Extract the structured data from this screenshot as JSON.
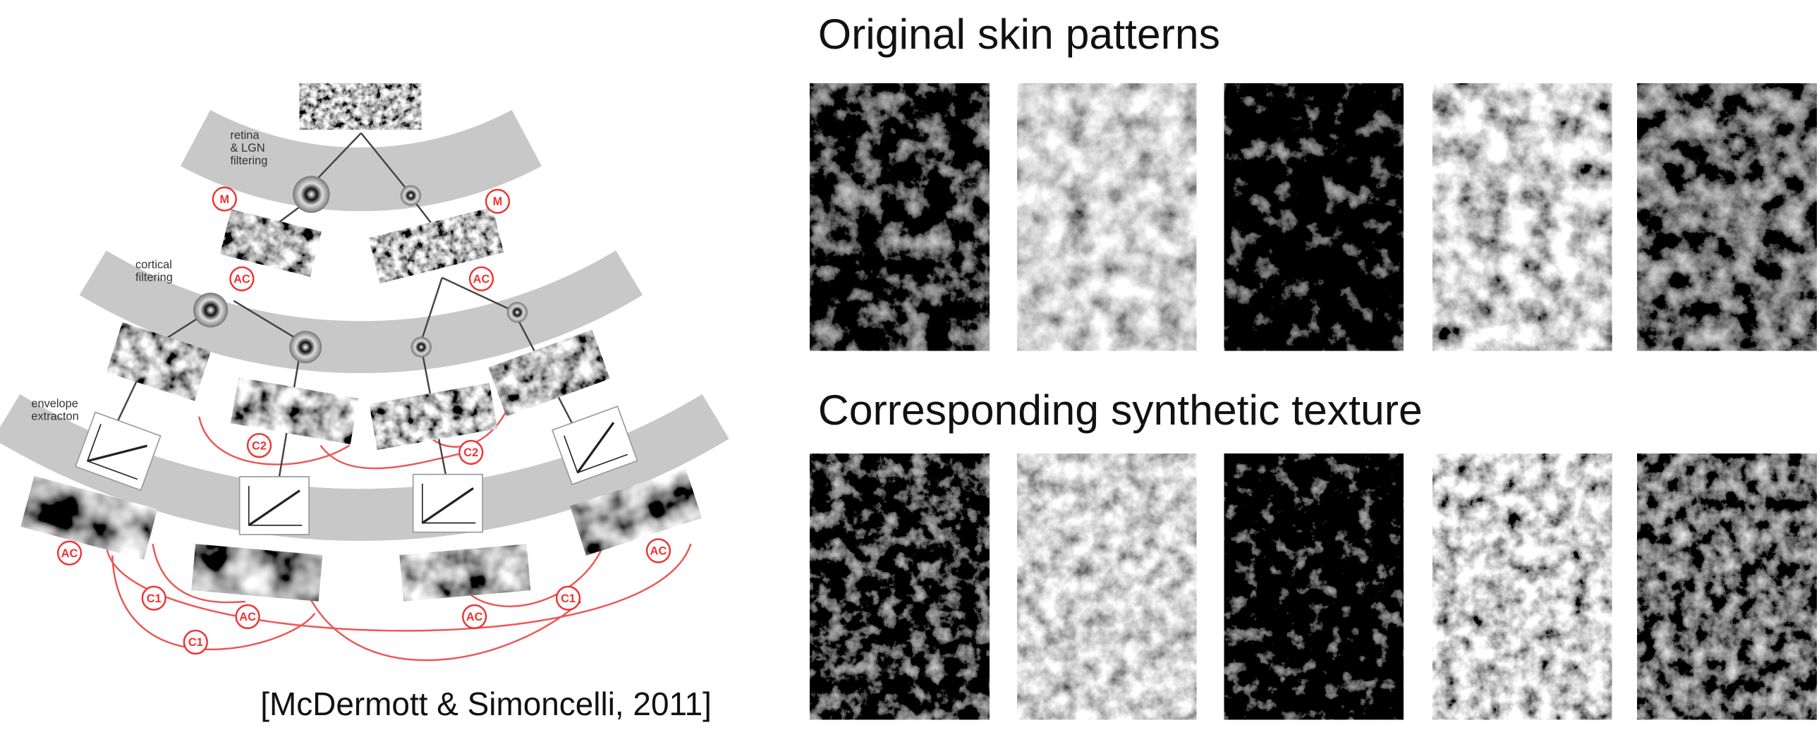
{
  "slide": {
    "headings": [
      "Original skin patterns",
      "Corresponding synthetic texture"
    ],
    "citation": "[McDermott & Simoncelli, 2011]"
  },
  "diagram": {
    "stage_labels": [
      [
        "retina",
        "& LGN",
        "filtering"
      ],
      [
        "cortical",
        "filtering"
      ],
      [
        "envelope",
        "extracton"
      ]
    ],
    "node_labels": [
      "M",
      "M",
      "AC",
      "AC",
      "C2",
      "C2",
      "AC",
      "AC",
      "C1",
      "AC",
      "AC",
      "C1",
      "C1"
    ]
  }
}
